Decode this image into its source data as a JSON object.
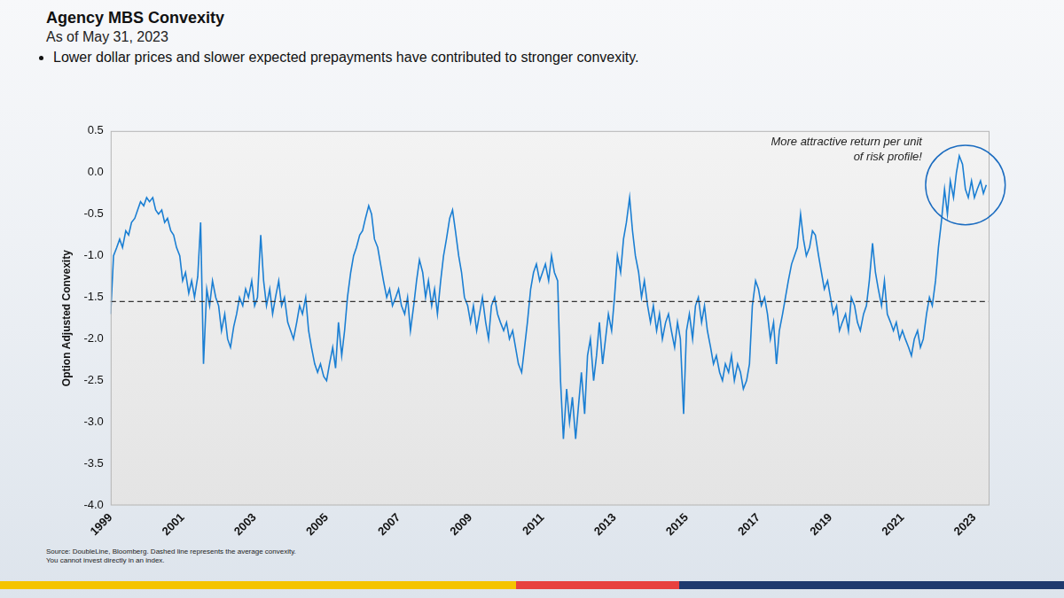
{
  "chart_data": {
    "type": "line",
    "title": "Agency MBS Convexity",
    "subtitle": "As of May 31, 2023",
    "bullet": "Lower dollar prices and slower expected prepayments have contributed to stronger convexity.",
    "y_label": "Option Adjusted Convexity",
    "annotation": "More attractive return per unit of risk profile!",
    "source": "Source: DoubleLine, Bloomberg. Dashed line represents the average convexity.",
    "note": "You cannot invest directly in an index.",
    "color": "#1b7fd3",
    "grid": false,
    "average": -1.55,
    "xlim": [
      1999,
      2023.42
    ],
    "xticks": [
      1999,
      2001,
      2003,
      2005,
      2007,
      2009,
      2011,
      2013,
      2015,
      2017,
      2019,
      2021,
      2023
    ],
    "ylim": [
      -4,
      0.5
    ],
    "yticks": [
      0.5,
      {
        "value": 0,
        "label": "0.0"
      },
      -0.5,
      {
        "value": -1,
        "label": "-1.0"
      },
      -1.5,
      {
        "value": -2,
        "label": "-2.0"
      },
      -2.5,
      {
        "value": -3,
        "label": "-3.0"
      },
      -3.5,
      {
        "value": -4,
        "label": "-4.0"
      }
    ],
    "x": [
      1999.0,
      1999.08,
      1999.17,
      1999.25,
      1999.33,
      1999.42,
      1999.5,
      1999.58,
      1999.67,
      1999.75,
      1999.83,
      1999.92,
      2000.0,
      2000.08,
      2000.17,
      2000.25,
      2000.33,
      2000.42,
      2000.5,
      2000.58,
      2000.67,
      2000.75,
      2000.83,
      2000.92,
      2001.0,
      2001.08,
      2001.17,
      2001.25,
      2001.33,
      2001.42,
      2001.5,
      2001.58,
      2001.67,
      2001.75,
      2001.83,
      2001.92,
      2002.0,
      2002.08,
      2002.17,
      2002.25,
      2002.33,
      2002.42,
      2002.5,
      2002.58,
      2002.67,
      2002.75,
      2002.83,
      2002.92,
      2003.0,
      2003.08,
      2003.17,
      2003.25,
      2003.33,
      2003.42,
      2003.5,
      2003.58,
      2003.67,
      2003.75,
      2003.83,
      2003.92,
      2004.0,
      2004.08,
      2004.17,
      2004.25,
      2004.33,
      2004.42,
      2004.5,
      2004.58,
      2004.67,
      2004.75,
      2004.83,
      2004.92,
      2005.0,
      2005.08,
      2005.17,
      2005.25,
      2005.33,
      2005.42,
      2005.5,
      2005.58,
      2005.67,
      2005.75,
      2005.83,
      2005.92,
      2006.0,
      2006.08,
      2006.17,
      2006.25,
      2006.33,
      2006.42,
      2006.5,
      2006.58,
      2006.67,
      2006.75,
      2006.83,
      2006.92,
      2007.0,
      2007.08,
      2007.17,
      2007.25,
      2007.33,
      2007.42,
      2007.5,
      2007.58,
      2007.67,
      2007.75,
      2007.83,
      2007.92,
      2008.0,
      2008.08,
      2008.17,
      2008.25,
      2008.33,
      2008.42,
      2008.5,
      2008.58,
      2008.67,
      2008.75,
      2008.83,
      2008.92,
      2009.0,
      2009.08,
      2009.17,
      2009.25,
      2009.33,
      2009.42,
      2009.5,
      2009.58,
      2009.67,
      2009.75,
      2009.83,
      2009.92,
      2010.0,
      2010.08,
      2010.17,
      2010.25,
      2010.33,
      2010.42,
      2010.5,
      2010.58,
      2010.67,
      2010.75,
      2010.83,
      2010.92,
      2011.0,
      2011.08,
      2011.17,
      2011.25,
      2011.33,
      2011.42,
      2011.5,
      2011.58,
      2011.67,
      2011.75,
      2011.83,
      2011.92,
      2012.0,
      2012.08,
      2012.17,
      2012.25,
      2012.33,
      2012.42,
      2012.5,
      2012.58,
      2012.67,
      2012.75,
      2012.83,
      2012.92,
      2013.0,
      2013.08,
      2013.17,
      2013.25,
      2013.33,
      2013.42,
      2013.5,
      2013.58,
      2013.67,
      2013.75,
      2013.83,
      2013.92,
      2014.0,
      2014.08,
      2014.17,
      2014.25,
      2014.33,
      2014.42,
      2014.5,
      2014.58,
      2014.67,
      2014.75,
      2014.83,
      2014.92,
      2015.0,
      2015.08,
      2015.17,
      2015.25,
      2015.33,
      2015.42,
      2015.5,
      2015.58,
      2015.67,
      2015.75,
      2015.83,
      2015.92,
      2016.0,
      2016.08,
      2016.17,
      2016.25,
      2016.33,
      2016.42,
      2016.5,
      2016.58,
      2016.67,
      2016.75,
      2016.83,
      2016.92,
      2017.0,
      2017.08,
      2017.17,
      2017.25,
      2017.33,
      2017.42,
      2017.5,
      2017.58,
      2017.67,
      2017.75,
      2017.83,
      2017.92,
      2018.0,
      2018.08,
      2018.17,
      2018.25,
      2018.33,
      2018.42,
      2018.5,
      2018.58,
      2018.67,
      2018.75,
      2018.83,
      2018.92,
      2019.0,
      2019.08,
      2019.17,
      2019.25,
      2019.33,
      2019.42,
      2019.5,
      2019.58,
      2019.67,
      2019.75,
      2019.83,
      2019.92,
      2020.0,
      2020.08,
      2020.17,
      2020.25,
      2020.33,
      2020.42,
      2020.5,
      2020.58,
      2020.67,
      2020.75,
      2020.83,
      2020.92,
      2021.0,
      2021.08,
      2021.17,
      2021.25,
      2021.33,
      2021.42,
      2021.5,
      2021.58,
      2021.67,
      2021.75,
      2021.83,
      2021.92,
      2022.0,
      2022.08,
      2022.17,
      2022.25,
      2022.33,
      2022.42,
      2022.5,
      2022.58,
      2022.67,
      2022.75,
      2022.83,
      2022.92,
      2023.0,
      2023.08,
      2023.17,
      2023.25,
      2023.33
    ],
    "values": [
      -1.7,
      -1.0,
      -0.9,
      -0.8,
      -0.9,
      -0.7,
      -0.75,
      -0.6,
      -0.55,
      -0.45,
      -0.35,
      -0.4,
      -0.3,
      -0.35,
      -0.3,
      -0.45,
      -0.5,
      -0.45,
      -0.6,
      -0.55,
      -0.7,
      -0.75,
      -0.9,
      -1.0,
      -1.3,
      -1.2,
      -1.45,
      -1.3,
      -1.5,
      -1.25,
      -0.6,
      -2.3,
      -1.4,
      -1.6,
      -1.3,
      -1.5,
      -1.6,
      -1.9,
      -1.7,
      -2.0,
      -2.1,
      -1.85,
      -1.7,
      -1.5,
      -1.6,
      -1.4,
      -1.5,
      -1.3,
      -1.6,
      -1.5,
      -0.75,
      -1.3,
      -1.6,
      -1.4,
      -1.7,
      -1.5,
      -1.3,
      -1.6,
      -1.5,
      -1.8,
      -1.9,
      -2.0,
      -1.8,
      -1.6,
      -1.7,
      -1.5,
      -1.9,
      -2.1,
      -2.3,
      -2.4,
      -2.3,
      -2.45,
      -2.5,
      -2.3,
      -2.1,
      -2.35,
      -1.8,
      -2.2,
      -1.9,
      -1.5,
      -1.2,
      -1.0,
      -0.9,
      -0.75,
      -0.7,
      -0.55,
      -0.4,
      -0.5,
      -0.8,
      -0.9,
      -1.1,
      -1.3,
      -1.5,
      -1.4,
      -1.6,
      -1.5,
      -1.4,
      -1.6,
      -1.7,
      -1.5,
      -1.9,
      -1.6,
      -1.3,
      -1.05,
      -1.2,
      -1.5,
      -1.3,
      -1.6,
      -1.4,
      -1.7,
      -1.3,
      -1.0,
      -0.8,
      -0.55,
      -0.45,
      -0.7,
      -1.0,
      -1.2,
      -1.5,
      -1.6,
      -1.8,
      -1.6,
      -1.9,
      -1.7,
      -1.5,
      -1.8,
      -2.0,
      -1.6,
      -1.5,
      -1.7,
      -1.8,
      -1.9,
      -1.8,
      -2.0,
      -1.9,
      -2.1,
      -2.3,
      -2.4,
      -2.1,
      -1.8,
      -1.4,
      -1.2,
      -1.1,
      -1.3,
      -1.2,
      -1.1,
      -1.3,
      -1.0,
      -1.2,
      -1.3,
      -2.5,
      -3.2,
      -2.6,
      -3.0,
      -2.7,
      -3.2,
      -2.8,
      -2.4,
      -2.9,
      -2.2,
      -2.0,
      -2.5,
      -2.2,
      -1.8,
      -2.3,
      -2.0,
      -1.7,
      -1.9,
      -1.5,
      -1.0,
      -1.2,
      -0.8,
      -0.6,
      -0.3,
      -0.7,
      -1.0,
      -1.2,
      -1.5,
      -1.3,
      -1.6,
      -1.8,
      -1.6,
      -1.9,
      -1.7,
      -2.0,
      -1.8,
      -1.7,
      -1.9,
      -2.1,
      -1.8,
      -2.0,
      -2.9,
      -1.9,
      -1.7,
      -2.0,
      -1.6,
      -1.5,
      -1.8,
      -1.6,
      -1.9,
      -2.1,
      -2.3,
      -2.2,
      -2.4,
      -2.5,
      -2.3,
      -2.4,
      -2.2,
      -2.5,
      -2.3,
      -2.4,
      -2.6,
      -2.5,
      -2.3,
      -1.6,
      -1.3,
      -1.4,
      -1.6,
      -1.5,
      -1.7,
      -2.0,
      -1.8,
      -2.3,
      -1.9,
      -1.7,
      -1.5,
      -1.3,
      -1.1,
      -1.0,
      -0.9,
      -0.5,
      -0.8,
      -1.0,
      -0.9,
      -0.7,
      -0.75,
      -1.0,
      -1.2,
      -1.4,
      -1.3,
      -1.5,
      -1.7,
      -1.6,
      -1.9,
      -1.8,
      -1.7,
      -1.9,
      -1.5,
      -1.6,
      -1.8,
      -1.9,
      -1.7,
      -1.6,
      -1.3,
      -0.85,
      -1.2,
      -1.4,
      -1.6,
      -1.3,
      -1.7,
      -1.8,
      -1.9,
      -1.8,
      -2.0,
      -1.9,
      -2.0,
      -2.1,
      -2.2,
      -2.0,
      -1.9,
      -2.1,
      -2.0,
      -1.7,
      -1.5,
      -1.6,
      -1.3,
      -0.9,
      -0.6,
      -0.2,
      -0.5,
      -0.1,
      -0.3,
      0.0,
      0.2,
      0.1,
      -0.2,
      -0.3,
      -0.1,
      -0.3,
      -0.2,
      -0.1,
      -0.25,
      -0.15
    ]
  }
}
